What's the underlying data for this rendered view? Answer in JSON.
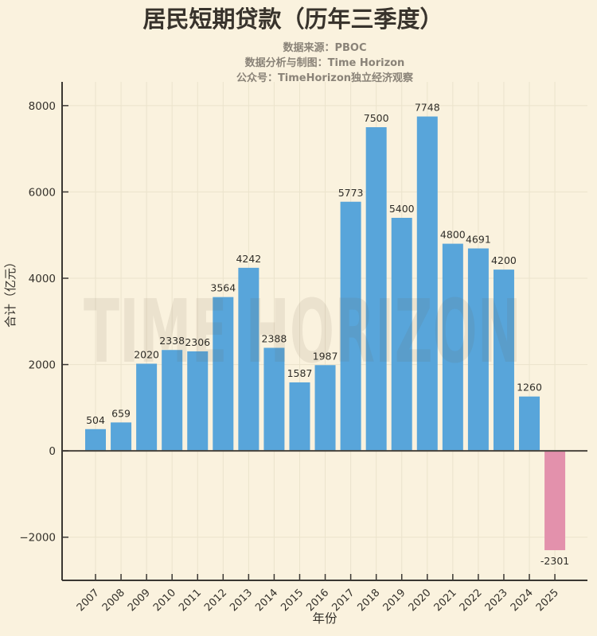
{
  "header": {
    "title": "居民短期贷款（历年三季度）",
    "subtitle_lines": [
      "数据来源：PBOC",
      "数据分析与制图：Time Horizon",
      "公众号：TimeHorizon独立经济观察"
    ]
  },
  "watermark": "TIME HORIZON",
  "colors": {
    "background": "#faf2de",
    "bar_positive": "#58a5da",
    "bar_negative": "#e391ac",
    "title_text": "#38332c",
    "subtitle_text": "#8a8378",
    "axis_line": "#3a3732",
    "zero_line": "#4a453d",
    "grid_line": "#ebe3cc",
    "tick_text": "#34312b",
    "value_label_text": "#2f2d28",
    "watermark_text": "#6b5d40"
  },
  "chart_data": {
    "type": "bar",
    "title": "居民短期贷款（历年三季度）",
    "xlabel": "年份",
    "ylabel": "合计（亿元）",
    "categories": [
      "2007",
      "2008",
      "2009",
      "2010",
      "2011",
      "2012",
      "2013",
      "2014",
      "2015",
      "2016",
      "2017",
      "2018",
      "2019",
      "2020",
      "2021",
      "2022",
      "2023",
      "2024",
      "2025"
    ],
    "values": [
      504,
      659,
      2020,
      2338,
      2306,
      3564,
      4242,
      2388,
      1587,
      1987,
      5773,
      7500,
      5400,
      7748,
      4800,
      4691,
      4200,
      1260,
      -2301
    ],
    "value_labels": [
      "504",
      "659",
      "2020",
      "2338",
      "2306",
      "3564",
      "4242",
      "2388",
      "1587",
      "1987",
      "5773",
      "7500",
      "5400",
      "7748",
      "4800",
      "4691",
      "4200",
      "1260",
      "-2301"
    ],
    "yticks": [
      8000,
      6000,
      4000,
      2000,
      0,
      -2000
    ],
    "ytick_labels": [
      "8000",
      "6000",
      "4000",
      "2000",
      "0",
      "−2000"
    ],
    "ylim": [
      -3000,
      8550
    ],
    "grid": true,
    "legend_position": "none"
  }
}
